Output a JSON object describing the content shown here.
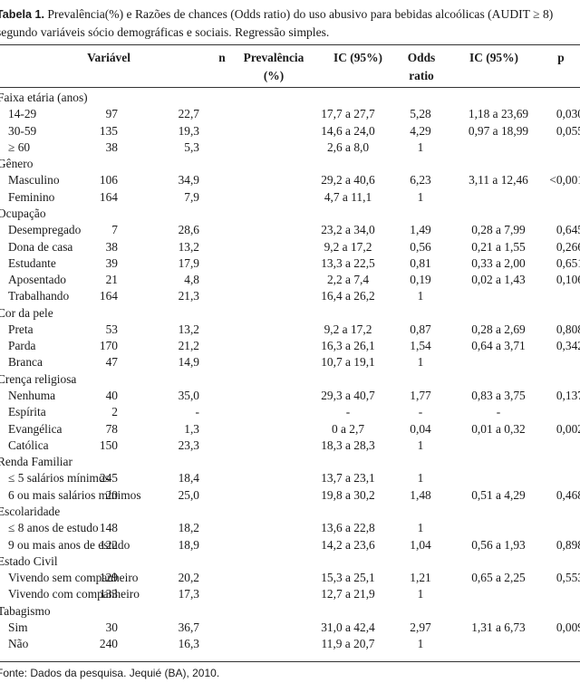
{
  "caption": {
    "label": "Tabela 1.",
    "text": " Prevalência(%) e Razões de chances (Odds ratio) do uso abusivo para bebidas alcoólicas (AUDIT ≥ 8) segundo variáveis sócio demográficas e sociais. Regressão simples."
  },
  "header": {
    "variavel": "Variável",
    "n": "n",
    "prevalencia_1": "Prevalência",
    "prevalencia_2": "(%)",
    "ic1": "IC (95%)",
    "odds_1": "Odds",
    "odds_2": "ratio",
    "ic2": "IC (95%)",
    "p": "p"
  },
  "rows": [
    {
      "label": "Faixa etária (anos)",
      "group": true,
      "n": "",
      "prev": "",
      "ic1": "",
      "odds": "",
      "ic2": "",
      "p": ""
    },
    {
      "label": "14-29",
      "n": "97",
      "prev": "22,7",
      "ic1": "17,7 a 27,7",
      "odds": "5,28",
      "ic2": "1,18 a 23,69",
      "p": "0,030"
    },
    {
      "label": "30-59",
      "n": "135",
      "prev": "19,3",
      "ic1": "14,6 a 24,0",
      "odds": "4,29",
      "ic2": "0,97 a 18,99",
      "p": "0,055"
    },
    {
      "label": "≥ 60",
      "n": "38",
      "prev": "5,3",
      "ic1": "2,6 a 8,0",
      "odds": "1",
      "ic2": "",
      "p": ""
    },
    {
      "label": "Gênero",
      "group": true,
      "n": "",
      "prev": "",
      "ic1": "",
      "odds": "",
      "ic2": "",
      "p": ""
    },
    {
      "label": "Masculino",
      "n": "106",
      "prev": "34,9",
      "ic1": "29,2 a 40,6",
      "odds": "6,23",
      "ic2": "3,11 a 12,46",
      "p": "<0,001"
    },
    {
      "label": "Feminino",
      "n": "164",
      "prev": "7,9",
      "ic1": "4,7 a 11,1",
      "odds": "1",
      "ic2": "",
      "p": ""
    },
    {
      "label": "Ocupação",
      "group": true,
      "n": "",
      "prev": "",
      "ic1": "",
      "odds": "",
      "ic2": "",
      "p": ""
    },
    {
      "label": "Desempregado",
      "n": "7",
      "prev": "28,6",
      "ic1": "23,2 a 34,0",
      "odds": "1,49",
      "ic2": "0,28 a 7,99",
      "p": "0,645"
    },
    {
      "label": "Dona de casa",
      "n": "38",
      "prev": "13,2",
      "ic1": "9,2 a 17,2",
      "odds": "0,56",
      "ic2": "0,21 a 1,55",
      "p": "0,266"
    },
    {
      "label": "Estudante",
      "n": "39",
      "prev": "17,9",
      "ic1": "13,3 a 22,5",
      "odds": "0,81",
      "ic2": "0,33 a 2,00",
      "p": "0,651"
    },
    {
      "label": "Aposentado",
      "n": "21",
      "prev": "4,8",
      "ic1": "2,2 a 7,4",
      "odds": "0,19",
      "ic2": "0,02 a 1,43",
      "p": "0,106"
    },
    {
      "label": "Trabalhando",
      "n": "164",
      "prev": "21,3",
      "ic1": "16,4 a 26,2",
      "odds": "1",
      "ic2": "",
      "p": ""
    },
    {
      "label": "Cor da pele",
      "group": true,
      "n": "",
      "prev": "",
      "ic1": "",
      "odds": "",
      "ic2": "",
      "p": ""
    },
    {
      "label": "Preta",
      "n": "53",
      "prev": "13,2",
      "ic1": "9,2 a 17,2",
      "odds": "0,87",
      "ic2": "0,28 a 2,69",
      "p": "0,808"
    },
    {
      "label": "Parda",
      "n": "170",
      "prev": "21,2",
      "ic1": "16,3 a 26,1",
      "odds": "1,54",
      "ic2": "0,64 a 3,71",
      "p": "0,342"
    },
    {
      "label": "Branca",
      "n": "47",
      "prev": "14,9",
      "ic1": "10,7 a 19,1",
      "odds": "1",
      "ic2": "",
      "p": ""
    },
    {
      "label": "Crença religiosa",
      "group": true,
      "n": "",
      "prev": "",
      "ic1": "",
      "odds": "",
      "ic2": "",
      "p": ""
    },
    {
      "label": "Nenhuma",
      "n": "40",
      "prev": "35,0",
      "ic1": "29,3 a 40,7",
      "odds": "1,77",
      "ic2": "0,83 a 3,75",
      "p": "0,137"
    },
    {
      "label": "Espírita",
      "n": "2",
      "prev": "-",
      "ic1": "-",
      "odds": "-",
      "ic2": "-",
      "p": ""
    },
    {
      "label": "Evangélica",
      "n": "78",
      "prev": "1,3",
      "ic1": "0 a 2,7",
      "odds": "0,04",
      "ic2": "0,01 a 0,32",
      "p": "0,002"
    },
    {
      "label": "Católica",
      "n": "150",
      "prev": "23,3",
      "ic1": "18,3 a 28,3",
      "odds": "1",
      "ic2": "",
      "p": ""
    },
    {
      "label": "Renda Familiar",
      "group": true,
      "n": "",
      "prev": "",
      "ic1": "",
      "odds": "",
      "ic2": "",
      "p": ""
    },
    {
      "label": "≤  5 salários mínimos",
      "n": "245",
      "prev": "18,4",
      "ic1": "13,7 a 23,1",
      "odds": "1",
      "ic2": "",
      "p": ""
    },
    {
      "label": "6 ou mais salários mínimos",
      "n": "20",
      "prev": "25,0",
      "ic1": "19,8 a 30,2",
      "odds": "1,48",
      "ic2": "0,51 a 4,29",
      "p": "0,468"
    },
    {
      "label": "Escolaridade",
      "group": true,
      "n": "",
      "prev": "",
      "ic1": "",
      "odds": "",
      "ic2": "",
      "p": ""
    },
    {
      "label": "≤ 8 anos de estudo",
      "n": "148",
      "prev": "18,2",
      "ic1": "13,6 a 22,8",
      "odds": "1",
      "ic2": "",
      "p": ""
    },
    {
      "label": "9 ou mais anos de estudo",
      "n": "122",
      "prev": "18,9",
      "ic1": "14,2 a 23,6",
      "odds": "1,04",
      "ic2": "0,56 a 1,93",
      "p": "0,898"
    },
    {
      "label": "Estado Civil",
      "group": true,
      "n": "",
      "prev": "",
      "ic1": "",
      "odds": "",
      "ic2": "",
      "p": ""
    },
    {
      "label": "Vivendo sem companheiro",
      "n": "129",
      "prev": "20,2",
      "ic1": "15,3 a 25,1",
      "odds": "1,21",
      "ic2": "0,65 a 2,25",
      "p": "0,553"
    },
    {
      "label": "Vivendo com companheiro",
      "n": "133",
      "prev": "17,3",
      "ic1": "12,7 a 21,9",
      "odds": "1",
      "ic2": "",
      "p": ""
    },
    {
      "label": "Tabagismo",
      "group": true,
      "n": "",
      "prev": "",
      "ic1": "",
      "odds": "",
      "ic2": "",
      "p": ""
    },
    {
      "label": "Sim",
      "n": "30",
      "prev": "36,7",
      "ic1": "31,0 a 42,4",
      "odds": "2,97",
      "ic2": "1,31 a 6,73",
      "p": "0,009"
    },
    {
      "label": "Não",
      "n": "240",
      "prev": "16,3",
      "ic1": "11,9 a 20,7",
      "odds": "1",
      "ic2": "",
      "p": ""
    }
  ],
  "source": "Fonte: Dados da pesquisa. Jequié (BA), 2010."
}
